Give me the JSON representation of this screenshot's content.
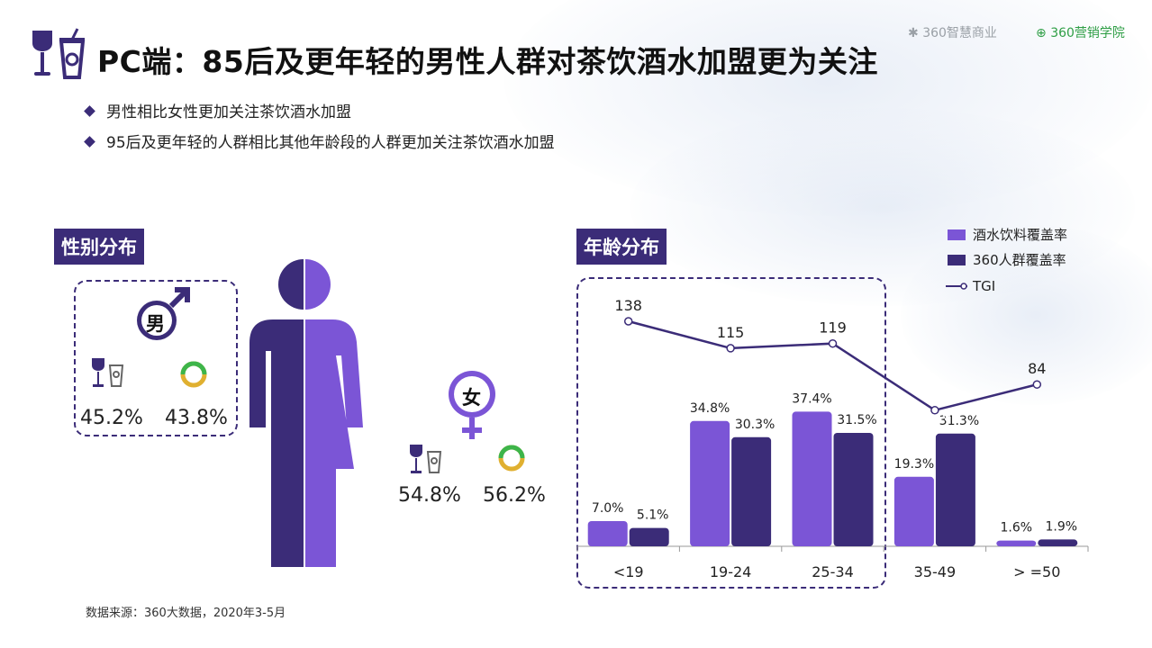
{
  "title": "PC端：85后及更年轻的男性人群对茶饮酒水加盟更为关注",
  "brand": {
    "left": "360智慧商业",
    "right": "360营销学院"
  },
  "bullets": [
    "男性相比女性更加关注茶饮酒水加盟",
    "95后及更年轻的人群相比其他年龄段的人群更加关注茶饮酒水加盟"
  ],
  "gender": {
    "label": "性别分布",
    "male": {
      "symbol": "男",
      "beverage": "45.2%",
      "population": "43.8%"
    },
    "female": {
      "symbol": "女",
      "beverage": "54.8%",
      "population": "56.2%"
    }
  },
  "age": {
    "label": "年龄分布"
  },
  "source": "数据来源：360大数据，2020年3-5月",
  "colors": {
    "primary": "#3b2c78",
    "light": "#7b55d6",
    "ring_green": "#3db54a",
    "ring_yellow": "#e0b030"
  },
  "chart_data": {
    "type": "bar",
    "categories": [
      "<19",
      "19-24",
      "25-34",
      "35-49",
      ">=50"
    ],
    "category_labels": [
      "<19",
      "19-24",
      "25-34",
      "35-49",
      "> =50"
    ],
    "series": [
      {
        "name": "酒水饮料覆盖率",
        "values": [
          7.0,
          34.8,
          37.4,
          19.3,
          1.6
        ],
        "labels": [
          "7.0%",
          "34.8%",
          "37.4%",
          "19.3%",
          "1.6%"
        ],
        "color": "#7b55d6"
      },
      {
        "name": "360人群覆盖率",
        "values": [
          5.1,
          30.3,
          31.5,
          31.3,
          1.9
        ],
        "labels": [
          "5.1%",
          "30.3%",
          "31.5%",
          "31.3%",
          "1.9%"
        ],
        "color": "#3b2c78"
      }
    ],
    "line": {
      "name": "TGI",
      "values": [
        138,
        115,
        119,
        62,
        84
      ]
    },
    "legend_position": "top-right",
    "grid": false
  }
}
